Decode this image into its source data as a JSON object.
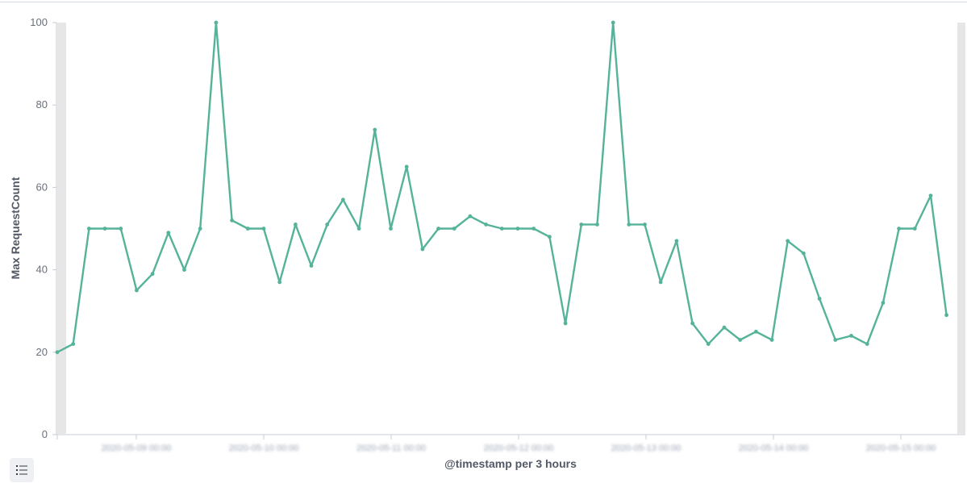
{
  "chart_data": {
    "type": "line",
    "xlabel": "@timestamp per 3 hours",
    "ylabel": "Max RequestCount",
    "ylim": [
      0,
      100
    ],
    "y_ticks": [
      0,
      20,
      40,
      60,
      80,
      100
    ],
    "x_tick_labels": [
      "2020-05-09 00:00",
      "2020-05-10 00:00",
      "2020-05-11 00:00",
      "2020-05-12 00:00",
      "2020-05-13 00:00",
      "2020-05-14 00:00",
      "2020-05-15 00:00"
    ],
    "line_color": "#54b399",
    "grid": false,
    "series": [
      {
        "values": [
          20,
          22,
          50,
          50,
          50,
          35,
          39,
          49,
          40,
          50,
          100,
          52,
          50,
          50,
          37,
          51,
          41,
          51,
          57,
          50,
          74,
          50,
          65,
          45,
          50,
          50,
          53,
          51,
          50,
          50,
          50,
          48,
          27,
          51,
          51,
          100,
          51,
          51,
          37,
          47,
          27,
          22,
          26,
          23,
          25,
          23,
          47,
          44,
          33,
          23,
          24,
          22,
          32,
          50,
          50,
          58,
          29
        ]
      }
    ]
  },
  "legend_toggle": {
    "icon": "list-icon"
  }
}
